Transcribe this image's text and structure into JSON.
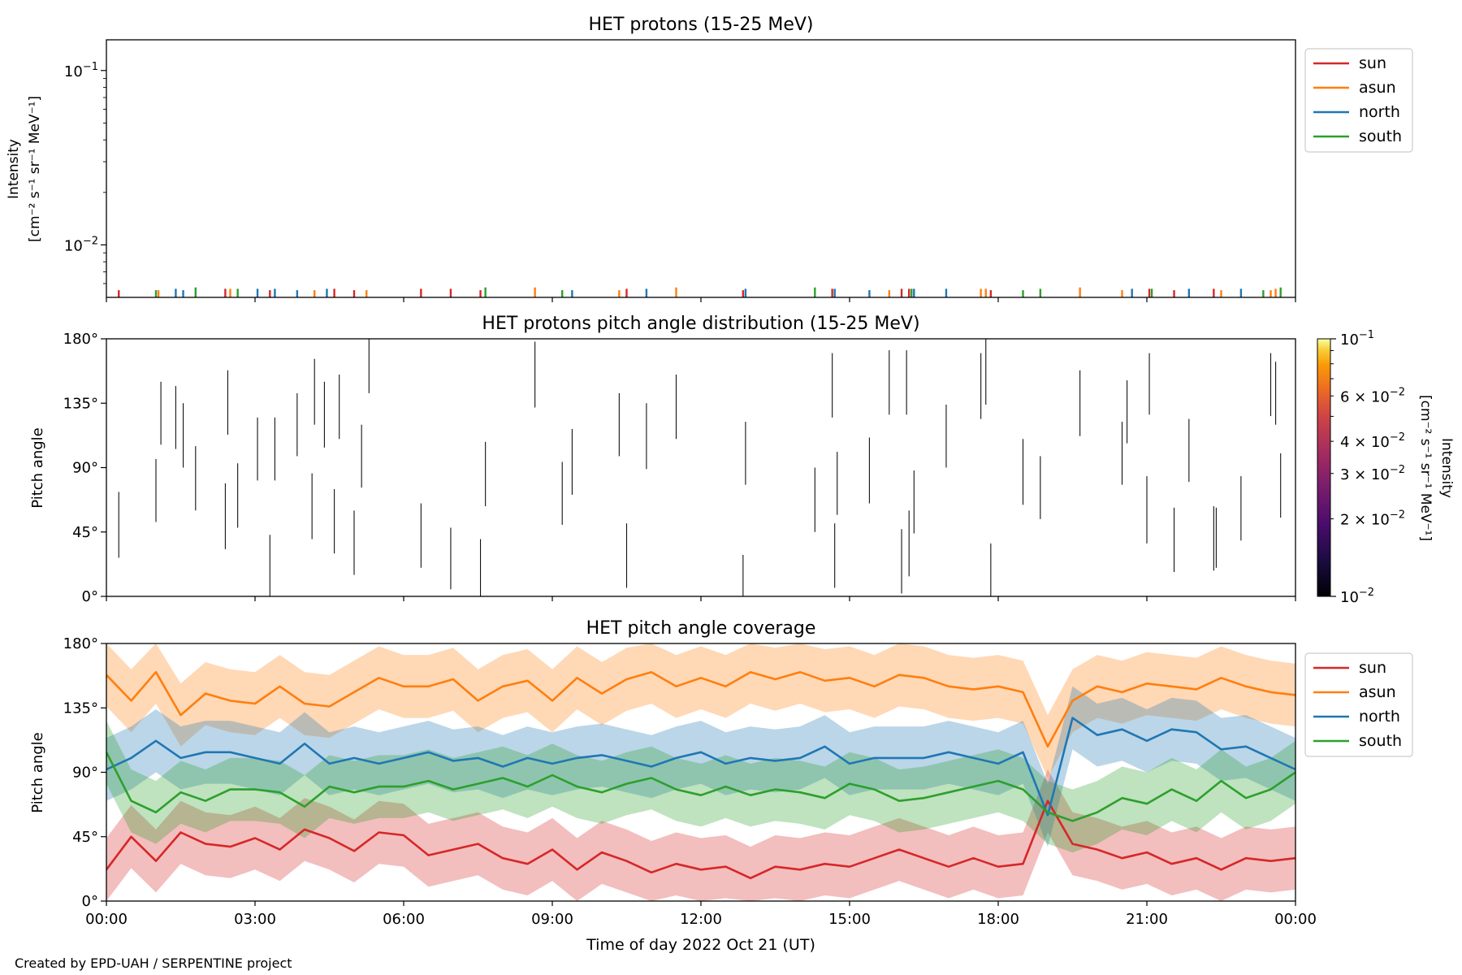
{
  "credit": "Created by EPD-UAH / SERPENTINE project",
  "xlabel": "Time of day 2022 Oct 21 (UT)",
  "x_ticks": [
    "00:00",
    "03:00",
    "06:00",
    "09:00",
    "12:00",
    "15:00",
    "18:00",
    "21:00",
    "00:00"
  ],
  "colors": {
    "sun": "#d62728",
    "asun": "#ff7f0e",
    "north": "#1f77b4",
    "south": "#2ca02c"
  },
  "chart_data": [
    {
      "type": "line",
      "title": "HET protons (15-25 MeV)",
      "ylabel_line1": "Intensity",
      "ylabel_line2": "[cm⁻² s⁻¹ sr⁻¹ MeV⁻¹]",
      "y_scale": "log",
      "ylim": [
        0.005,
        0.15
      ],
      "y_ticks": [
        {
          "value": 0.1,
          "base": "10",
          "exp": "−1"
        },
        {
          "value": 0.01,
          "base": "10",
          "exp": "−2"
        }
      ],
      "xlim_hours": [
        0,
        24
      ],
      "grid": false,
      "legend": {
        "placement": "outside right",
        "entries": [
          "sun",
          "asun",
          "north",
          "south"
        ]
      },
      "series": [
        {
          "name": "sun",
          "color": "#d62728",
          "events": [
            {
              "t": 0.25,
              "value": 0.0055
            },
            {
              "t": 2.4,
              "value": 0.0056
            },
            {
              "t": 3.3,
              "value": 0.0055
            },
            {
              "t": 4.6,
              "value": 0.0056
            },
            {
              "t": 5.0,
              "value": 0.0055
            },
            {
              "t": 6.35,
              "value": 0.0056
            },
            {
              "t": 6.95,
              "value": 0.0056
            },
            {
              "t": 7.55,
              "value": 0.0055
            },
            {
              "t": 10.5,
              "value": 0.0056
            },
            {
              "t": 12.85,
              "value": 0.0055
            },
            {
              "t": 14.65,
              "value": 0.0056
            },
            {
              "t": 16.05,
              "value": 0.0056
            },
            {
              "t": 16.2,
              "value": 0.0056
            },
            {
              "t": 17.85,
              "value": 0.0055
            },
            {
              "t": 21.05,
              "value": 0.0056
            },
            {
              "t": 21.55,
              "value": 0.0055
            },
            {
              "t": 22.35,
              "value": 0.0056
            }
          ]
        },
        {
          "name": "asun",
          "color": "#ff7f0e",
          "events": [
            {
              "t": 1.05,
              "value": 0.0055
            },
            {
              "t": 2.5,
              "value": 0.0056
            },
            {
              "t": 4.2,
              "value": 0.0055
            },
            {
              "t": 5.25,
              "value": 0.0055
            },
            {
              "t": 8.65,
              "value": 0.0057
            },
            {
              "t": 10.35,
              "value": 0.0055
            },
            {
              "t": 11.5,
              "value": 0.0057
            },
            {
              "t": 15.8,
              "value": 0.0055
            },
            {
              "t": 17.65,
              "value": 0.0056
            },
            {
              "t": 17.75,
              "value": 0.0056
            },
            {
              "t": 19.65,
              "value": 0.0057
            },
            {
              "t": 20.5,
              "value": 0.0055
            },
            {
              "t": 22.5,
              "value": 0.0055
            },
            {
              "t": 23.5,
              "value": 0.0055
            },
            {
              "t": 23.6,
              "value": 0.0056
            }
          ]
        },
        {
          "name": "north",
          "color": "#1f77b4",
          "events": [
            {
              "t": 1.4,
              "value": 0.0056
            },
            {
              "t": 1.55,
              "value": 0.0055
            },
            {
              "t": 3.05,
              "value": 0.0056
            },
            {
              "t": 3.4,
              "value": 0.0056
            },
            {
              "t": 3.85,
              "value": 0.0055
            },
            {
              "t": 4.45,
              "value": 0.0056
            },
            {
              "t": 9.4,
              "value": 0.0055
            },
            {
              "t": 10.9,
              "value": 0.0056
            },
            {
              "t": 12.9,
              "value": 0.0056
            },
            {
              "t": 14.7,
              "value": 0.0056
            },
            {
              "t": 15.4,
              "value": 0.0055
            },
            {
              "t": 16.3,
              "value": 0.0056
            },
            {
              "t": 16.95,
              "value": 0.0056
            },
            {
              "t": 20.7,
              "value": 0.0056
            },
            {
              "t": 21.85,
              "value": 0.0056
            },
            {
              "t": 22.9,
              "value": 0.0056
            }
          ]
        },
        {
          "name": "south",
          "color": "#2ca02c",
          "events": [
            {
              "t": 1.0,
              "value": 0.0055
            },
            {
              "t": 1.8,
              "value": 0.0057
            },
            {
              "t": 2.65,
              "value": 0.0056
            },
            {
              "t": 7.65,
              "value": 0.0057
            },
            {
              "t": 9.2,
              "value": 0.0055
            },
            {
              "t": 14.3,
              "value": 0.0057
            },
            {
              "t": 16.25,
              "value": 0.0056
            },
            {
              "t": 18.5,
              "value": 0.0055
            },
            {
              "t": 18.85,
              "value": 0.0056
            },
            {
              "t": 21.1,
              "value": 0.0056
            },
            {
              "t": 23.35,
              "value": 0.0055
            },
            {
              "t": 23.7,
              "value": 0.0057
            }
          ]
        }
      ]
    },
    {
      "type": "heatmap",
      "title": "HET protons pitch angle distribution (15-25 MeV)",
      "ylabel": "Pitch angle",
      "ylim": [
        0,
        180
      ],
      "y_ticks": [
        "0°",
        "45°",
        "90°",
        "135°",
        "180°"
      ],
      "xlim_hours": [
        0,
        24
      ],
      "colorbar": {
        "colormap": "inferno",
        "scale": "log",
        "range": [
          0.01,
          0.1
        ],
        "label_line1": "Intensity",
        "label_line2": "[cm⁻² s⁻¹ sr⁻¹ MeV⁻¹]",
        "major_ticks": [
          {
            "value": 0.1,
            "base": "10",
            "exp": "−1"
          },
          {
            "value": 0.01,
            "base": "10",
            "exp": "−2"
          }
        ],
        "minor_ticks": [
          {
            "value": 0.06,
            "mant": "6",
            "exp": "−2"
          },
          {
            "value": 0.04,
            "mant": "4",
            "exp": "−2"
          },
          {
            "value": 0.03,
            "mant": "3",
            "exp": "−2"
          },
          {
            "value": 0.02,
            "mant": "2",
            "exp": "−2"
          }
        ]
      },
      "segments": [
        {
          "t": 0.25,
          "lo": 27,
          "hi": 73
        },
        {
          "t": 1.0,
          "lo": 52,
          "hi": 96
        },
        {
          "t": 1.1,
          "lo": 106,
          "hi": 150
        },
        {
          "t": 1.4,
          "lo": 103,
          "hi": 147
        },
        {
          "t": 1.55,
          "lo": 90,
          "hi": 135
        },
        {
          "t": 1.8,
          "lo": 60,
          "hi": 105
        },
        {
          "t": 2.4,
          "lo": 33,
          "hi": 79
        },
        {
          "t": 2.45,
          "lo": 113,
          "hi": 158
        },
        {
          "t": 2.65,
          "lo": 48,
          "hi": 93
        },
        {
          "t": 3.05,
          "lo": 81,
          "hi": 125
        },
        {
          "t": 3.3,
          "lo": 0,
          "hi": 43
        },
        {
          "t": 3.4,
          "lo": 81,
          "hi": 125
        },
        {
          "t": 3.85,
          "lo": 98,
          "hi": 142
        },
        {
          "t": 4.15,
          "lo": 40,
          "hi": 86
        },
        {
          "t": 4.2,
          "lo": 120,
          "hi": 166
        },
        {
          "t": 4.4,
          "lo": 104,
          "hi": 150
        },
        {
          "t": 4.6,
          "lo": 30,
          "hi": 75
        },
        {
          "t": 4.7,
          "lo": 110,
          "hi": 155
        },
        {
          "t": 5.0,
          "lo": 15,
          "hi": 60
        },
        {
          "t": 5.15,
          "lo": 76,
          "hi": 120
        },
        {
          "t": 5.3,
          "lo": 142,
          "hi": 180
        },
        {
          "t": 6.35,
          "lo": 20,
          "hi": 65
        },
        {
          "t": 6.95,
          "lo": 5,
          "hi": 48
        },
        {
          "t": 7.55,
          "lo": 0,
          "hi": 40
        },
        {
          "t": 7.65,
          "lo": 63,
          "hi": 108
        },
        {
          "t": 8.65,
          "lo": 132,
          "hi": 178
        },
        {
          "t": 9.2,
          "lo": 50,
          "hi": 94
        },
        {
          "t": 9.4,
          "lo": 71,
          "hi": 117
        },
        {
          "t": 10.35,
          "lo": 98,
          "hi": 142
        },
        {
          "t": 10.5,
          "lo": 6,
          "hi": 51
        },
        {
          "t": 10.9,
          "lo": 89,
          "hi": 135
        },
        {
          "t": 11.5,
          "lo": 110,
          "hi": 155
        },
        {
          "t": 12.85,
          "lo": 0,
          "hi": 29
        },
        {
          "t": 12.9,
          "lo": 78,
          "hi": 122
        },
        {
          "t": 14.3,
          "lo": 45,
          "hi": 90
        },
        {
          "t": 14.65,
          "lo": 125,
          "hi": 170
        },
        {
          "t": 14.7,
          "lo": 6,
          "hi": 51
        },
        {
          "t": 14.75,
          "lo": 57,
          "hi": 101
        },
        {
          "t": 15.4,
          "lo": 65,
          "hi": 111
        },
        {
          "t": 15.8,
          "lo": 127,
          "hi": 172
        },
        {
          "t": 16.05,
          "lo": 2,
          "hi": 47
        },
        {
          "t": 16.15,
          "lo": 127,
          "hi": 172
        },
        {
          "t": 16.2,
          "lo": 14,
          "hi": 60
        },
        {
          "t": 16.3,
          "lo": 44,
          "hi": 88
        },
        {
          "t": 16.95,
          "lo": 90,
          "hi": 134
        },
        {
          "t": 17.65,
          "lo": 124,
          "hi": 170
        },
        {
          "t": 17.75,
          "lo": 134,
          "hi": 180
        },
        {
          "t": 17.85,
          "lo": 0,
          "hi": 37
        },
        {
          "t": 18.5,
          "lo": 64,
          "hi": 110
        },
        {
          "t": 18.85,
          "lo": 54,
          "hi": 98
        },
        {
          "t": 19.65,
          "lo": 112,
          "hi": 158
        },
        {
          "t": 20.5,
          "lo": 78,
          "hi": 122
        },
        {
          "t": 20.6,
          "lo": 107,
          "hi": 151
        },
        {
          "t": 21.0,
          "lo": 37,
          "hi": 84
        },
        {
          "t": 21.05,
          "lo": 127,
          "hi": 170
        },
        {
          "t": 21.55,
          "lo": 17,
          "hi": 62
        },
        {
          "t": 21.85,
          "lo": 80,
          "hi": 124
        },
        {
          "t": 22.35,
          "lo": 18,
          "hi": 63
        },
        {
          "t": 22.4,
          "lo": 20,
          "hi": 62
        },
        {
          "t": 22.9,
          "lo": 39,
          "hi": 84
        },
        {
          "t": 23.5,
          "lo": 126,
          "hi": 170
        },
        {
          "t": 23.6,
          "lo": 120,
          "hi": 164
        },
        {
          "t": 23.7,
          "lo": 55,
          "hi": 100
        }
      ]
    },
    {
      "type": "area",
      "title": "HET pitch angle coverage",
      "ylabel": "Pitch angle",
      "ylim": [
        0,
        180
      ],
      "y_ticks": [
        "0°",
        "45°",
        "90°",
        "135°",
        "180°"
      ],
      "xlim_hours": [
        0,
        24
      ],
      "grid": false,
      "legend": {
        "placement": "outside right",
        "entries": [
          "sun",
          "asun",
          "north",
          "south"
        ]
      },
      "band_halfwidth_deg": 22,
      "x_hours": [
        0,
        0.5,
        1,
        1.5,
        2,
        2.5,
        3,
        3.5,
        4,
        4.5,
        5,
        5.5,
        6,
        6.5,
        7,
        7.5,
        8,
        8.5,
        9,
        9.5,
        10,
        10.5,
        11,
        11.5,
        12,
        12.5,
        13,
        13.5,
        14,
        14.5,
        15,
        15.5,
        16,
        16.5,
        17,
        17.5,
        18,
        18.5,
        19,
        19.5,
        20,
        20.5,
        21,
        21.5,
        22,
        22.5,
        23,
        23.5,
        24
      ],
      "series": [
        {
          "name": "sun",
          "color": "#d62728",
          "values": [
            22,
            45,
            28,
            48,
            40,
            38,
            44,
            36,
            50,
            44,
            35,
            48,
            46,
            32,
            36,
            40,
            30,
            26,
            36,
            22,
            34,
            28,
            20,
            26,
            22,
            24,
            16,
            24,
            22,
            26,
            24,
            30,
            36,
            30,
            24,
            30,
            24,
            26,
            70,
            40,
            36,
            30,
            34,
            26,
            30,
            22,
            30,
            28,
            30
          ]
        },
        {
          "name": "asun",
          "color": "#ff7f0e",
          "values": [
            158,
            140,
            160,
            130,
            145,
            140,
            138,
            150,
            138,
            136,
            146,
            156,
            150,
            150,
            155,
            140,
            150,
            154,
            140,
            156,
            145,
            155,
            160,
            150,
            156,
            150,
            160,
            155,
            160,
            154,
            156,
            150,
            158,
            156,
            150,
            148,
            150,
            146,
            108,
            140,
            150,
            146,
            152,
            150,
            148,
            156,
            150,
            146,
            144
          ]
        },
        {
          "name": "north",
          "color": "#1f77b4",
          "values": [
            92,
            100,
            112,
            100,
            104,
            104,
            100,
            96,
            110,
            96,
            100,
            96,
            100,
            104,
            98,
            100,
            94,
            100,
            96,
            100,
            102,
            98,
            94,
            100,
            104,
            96,
            100,
            98,
            100,
            108,
            96,
            100,
            100,
            100,
            104,
            100,
            96,
            104,
            60,
            128,
            116,
            120,
            112,
            120,
            118,
            106,
            108,
            100,
            92
          ]
        },
        {
          "name": "south",
          "color": "#2ca02c",
          "values": [
            104,
            70,
            62,
            76,
            70,
            78,
            78,
            76,
            66,
            80,
            76,
            80,
            80,
            84,
            78,
            82,
            86,
            80,
            88,
            80,
            76,
            82,
            86,
            78,
            74,
            80,
            74,
            78,
            76,
            72,
            82,
            78,
            70,
            72,
            76,
            80,
            84,
            78,
            62,
            56,
            62,
            72,
            68,
            78,
            70,
            84,
            72,
            78,
            90
          ]
        }
      ]
    }
  ]
}
